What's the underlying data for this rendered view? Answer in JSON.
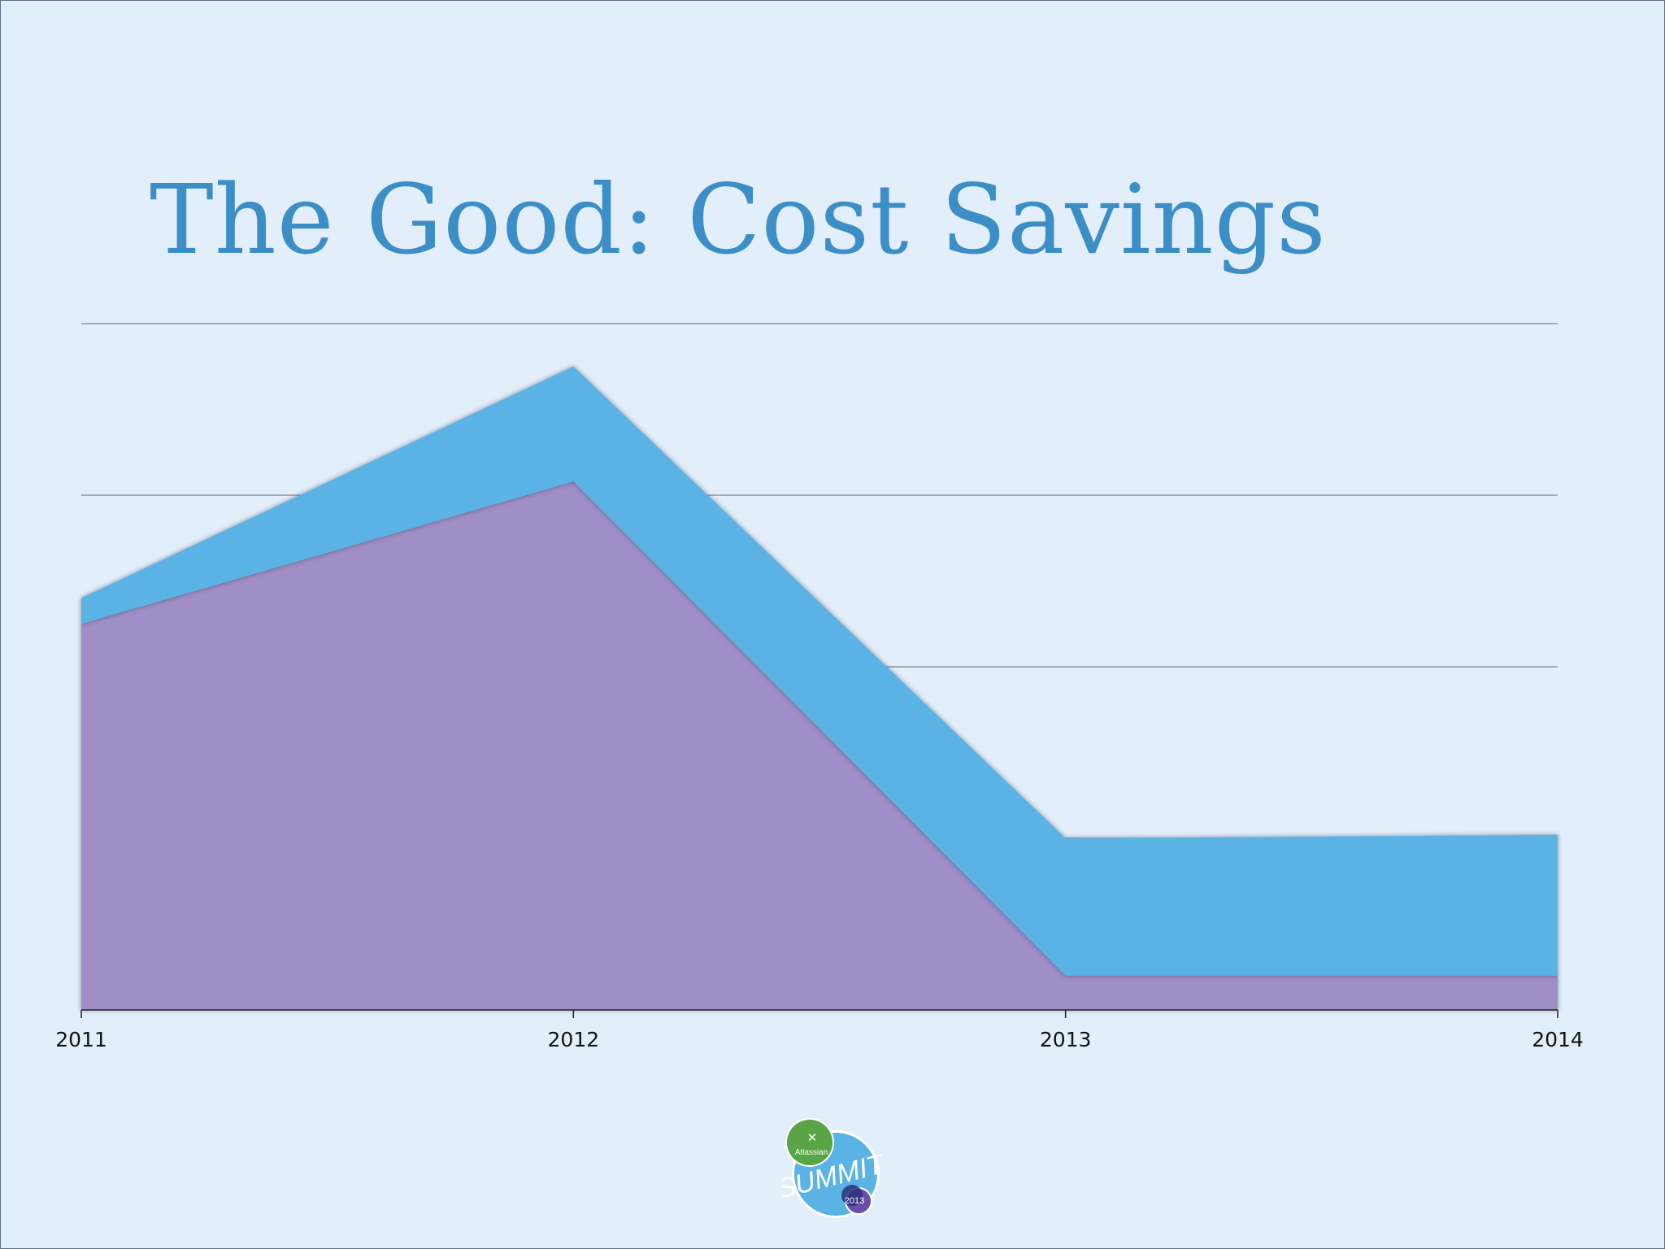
{
  "slide": {
    "title": "The Good: Cost Savings"
  },
  "chart_data": {
    "type": "area",
    "stacked": true,
    "title": "The Good: Cost Savings",
    "xlabel": "",
    "ylabel": "",
    "x": [
      "2011",
      "2012",
      "2013",
      "2014"
    ],
    "ylim": [
      0,
      4
    ],
    "grid": true,
    "y_ticks_labeled": false,
    "series": [
      {
        "values": [
          2.25,
          3.08,
          0.2,
          0.2
        ],
        "color": "#a08fc6"
      },
      {
        "values": [
          0.15,
          0.67,
          0.8,
          0.82
        ],
        "color": "#5ab3e4"
      }
    ]
  },
  "logo": {
    "text_brand": "Atlassian",
    "text_event": "SUMMIT",
    "text_year": "2013"
  }
}
